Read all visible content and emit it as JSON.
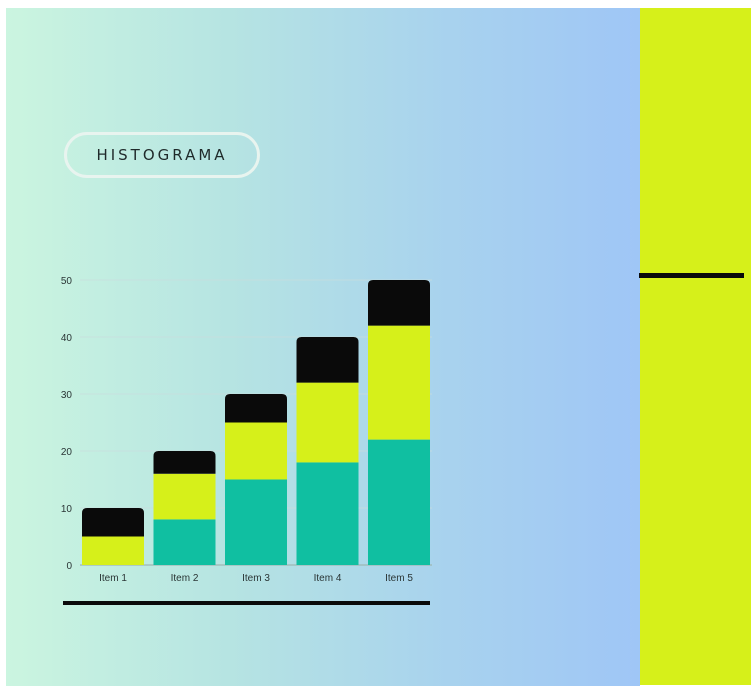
{
  "title": "HISTOGRAMA",
  "colors": {
    "accent_yellow": "#d6f01a",
    "teal": "#10bfa1",
    "black": "#0a0a0a"
  },
  "chart_data": {
    "type": "bar",
    "stacked": true,
    "categories": [
      "Item 1",
      "Item 2",
      "Item 3",
      "Item 4",
      "Item 5"
    ],
    "series": [
      {
        "values": [
          0,
          8,
          15,
          18,
          22
        ],
        "color": "#10bfa1"
      },
      {
        "values": [
          5,
          8,
          10,
          14,
          20
        ],
        "color": "#d6f01a"
      },
      {
        "values": [
          5,
          4,
          5,
          8,
          8
        ],
        "color": "#0a0a0a"
      }
    ],
    "ylim": [
      0,
      50
    ],
    "yticks": [
      0,
      10,
      20,
      30,
      40,
      50
    ],
    "grid": true
  }
}
